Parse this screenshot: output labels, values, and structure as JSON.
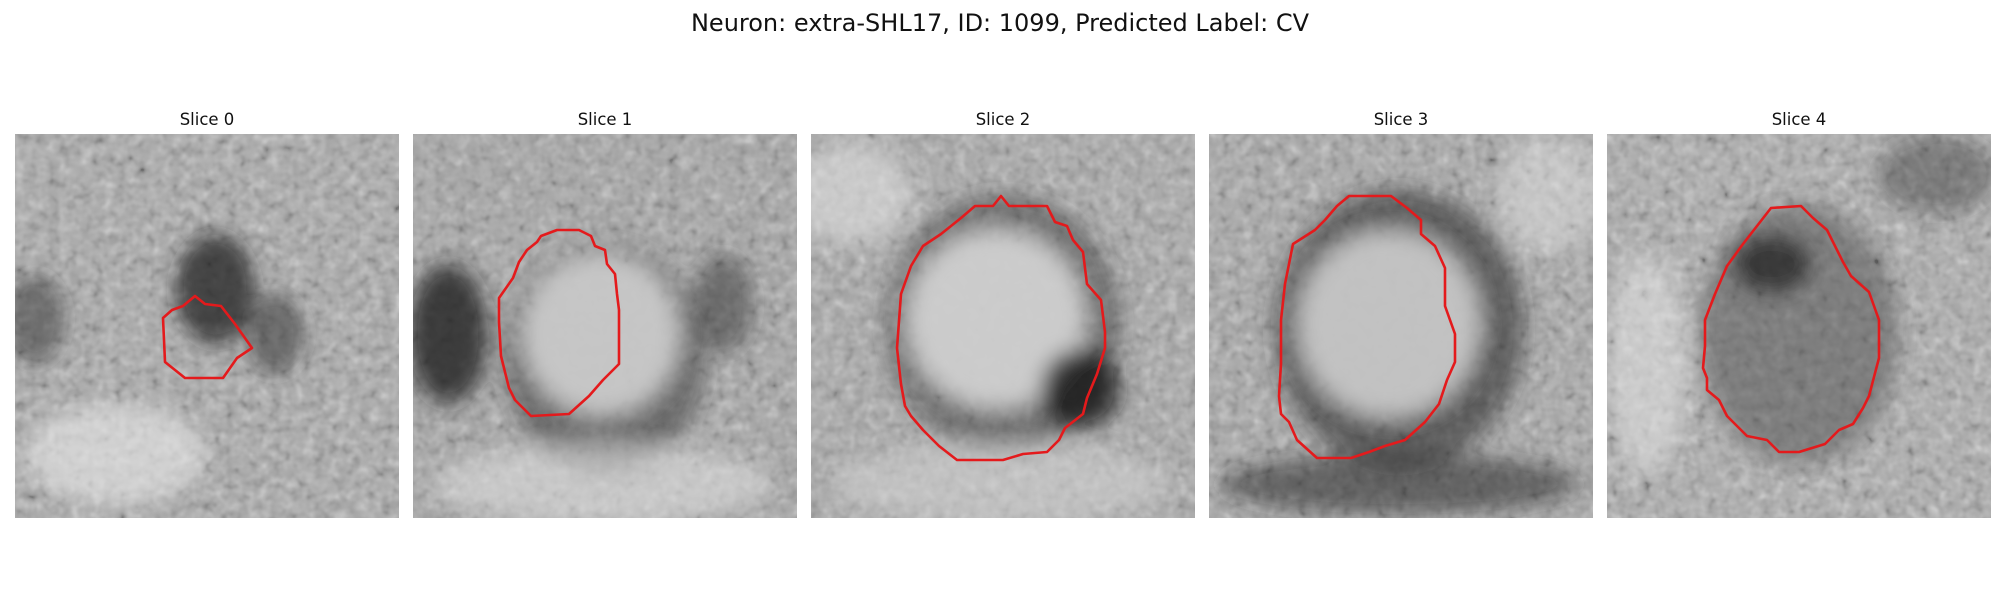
{
  "figure": {
    "title": "Neuron: extra-SHL17, ID: 1099, Predicted Label: CV"
  },
  "panels": [
    {
      "label": "Slice 0"
    },
    {
      "label": "Slice 1"
    },
    {
      "label": "Slice 2"
    },
    {
      "label": "Slice 3"
    },
    {
      "label": "Slice 4"
    }
  ],
  "colors": {
    "outline": "#e41a1c",
    "background": "#ffffff"
  }
}
